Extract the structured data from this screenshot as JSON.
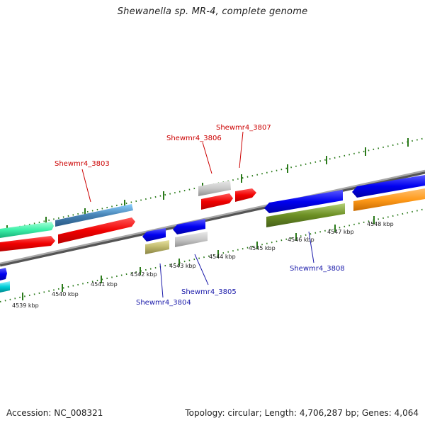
{
  "title": "Shewanella sp. MR-4, complete genome",
  "footer": {
    "accession": "Accession: NC_008321",
    "summary": "Topology: circular; Length: 4,706,287 bp; Genes: 4,064"
  },
  "ticks": [
    "4539 kbp",
    "4540 kbp",
    "4541 kbp",
    "4542 kbp",
    "4543 kbp",
    "4544 kbp",
    "4545 kbp",
    "4546 kbp",
    "4547 kbp",
    "4548 kbp"
  ],
  "gene_labels": {
    "g3803": "Shewmr4_3803",
    "g3806": "Shewmr4_3806",
    "g3807": "Shewmr4_3807",
    "g3804": "Shewmr4_3804",
    "g3805": "Shewmr4_3805",
    "g3808": "Shewmr4_3808"
  },
  "colors": {
    "forward_label": "#cc0000",
    "reverse_label": "#1a1aaa",
    "tick": "#2a7a1a",
    "backbone": "#777777"
  }
}
